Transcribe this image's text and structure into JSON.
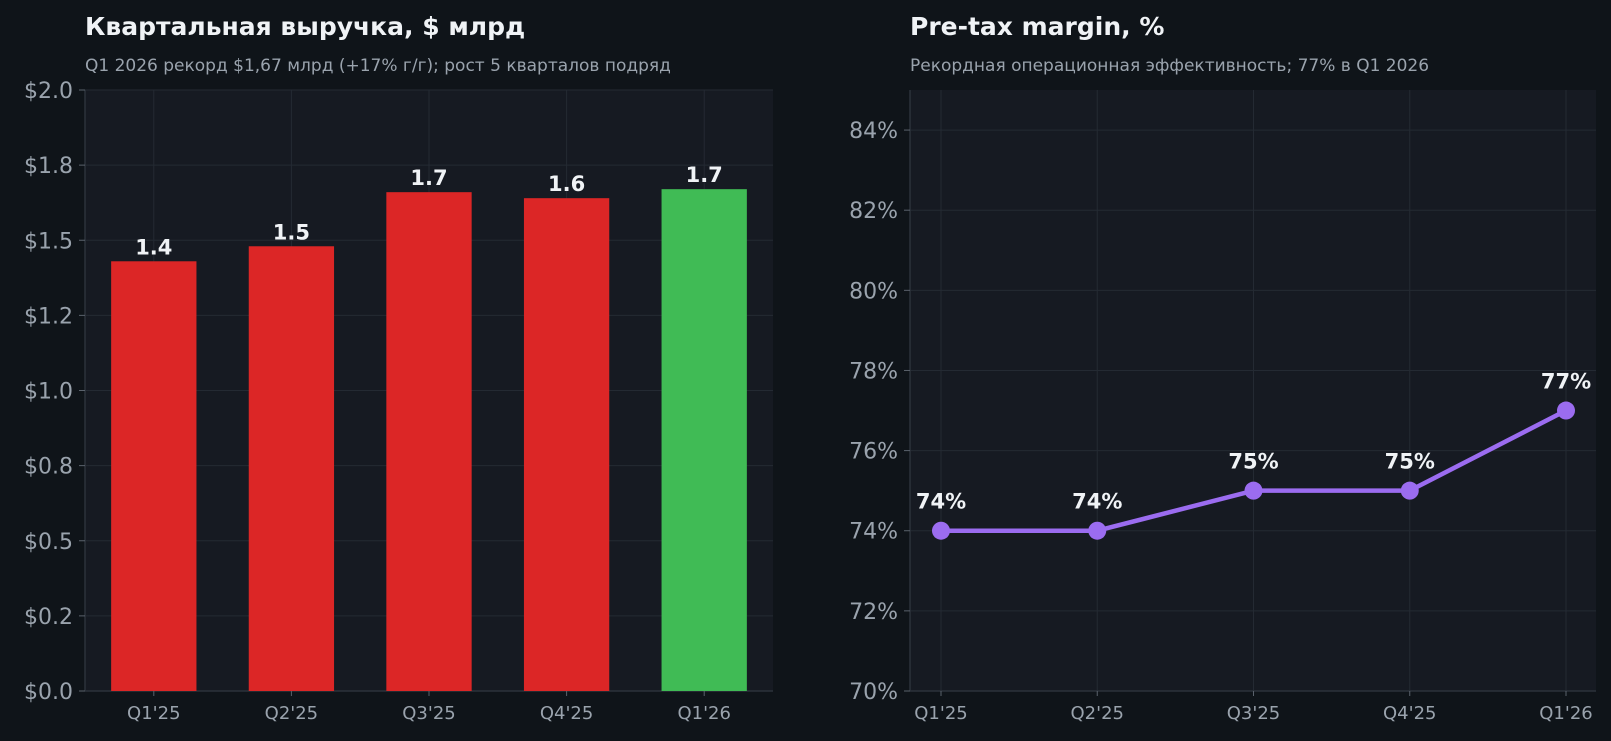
{
  "colors": {
    "background": "#0f1419",
    "plot_background": "#161a22",
    "grid": "#242a33",
    "axis_text": "#9aa3ad",
    "label_text": "#f0f3f6",
    "bar": "#dc2626",
    "bar_highlight": "#40bb55",
    "line": "#9b6cf0"
  },
  "chart_data": [
    {
      "type": "bar",
      "title": "Квартальная выручка, $ млрд",
      "subtitle": "Q1 2026 рекорд $1,67 млрд (+17% г/г); рост 5 кварталов подряд",
      "categories": [
        "Q1'25",
        "Q2'25",
        "Q3'25",
        "Q4'25",
        "Q1'26"
      ],
      "values": [
        1.43,
        1.48,
        1.66,
        1.64,
        1.67
      ],
      "data_labels": [
        "1.4",
        "1.5",
        "1.7",
        "1.6",
        "1.7"
      ],
      "highlight_index": 4,
      "ylim": [
        0,
        2.0
      ],
      "yticks": [
        0,
        0.25,
        0.5,
        0.75,
        1.0,
        1.25,
        1.5,
        1.75,
        2.0
      ],
      "ytick_labels": [
        "$0.0",
        "$0.2",
        "$0.5",
        "$0.8",
        "$1.0",
        "$1.2",
        "$1.5",
        "$1.8",
        "$2.0"
      ],
      "grid": true
    },
    {
      "type": "line",
      "title": "Pre-tax margin, %",
      "subtitle": "Рекордная операционная эффективность; 77% в Q1 2026",
      "categories": [
        "Q1'25",
        "Q2'25",
        "Q3'25",
        "Q4'25",
        "Q1'26"
      ],
      "values": [
        74,
        74,
        75,
        75,
        77
      ],
      "data_labels": [
        "74%",
        "74%",
        "75%",
        "75%",
        "77%"
      ],
      "ylim": [
        70,
        85
      ],
      "yticks": [
        70,
        72,
        74,
        76,
        78,
        80,
        82,
        84
      ],
      "ytick_labels": [
        "70%",
        "72%",
        "74%",
        "76%",
        "78%",
        "80%",
        "82%",
        "84%"
      ],
      "grid": true
    }
  ]
}
